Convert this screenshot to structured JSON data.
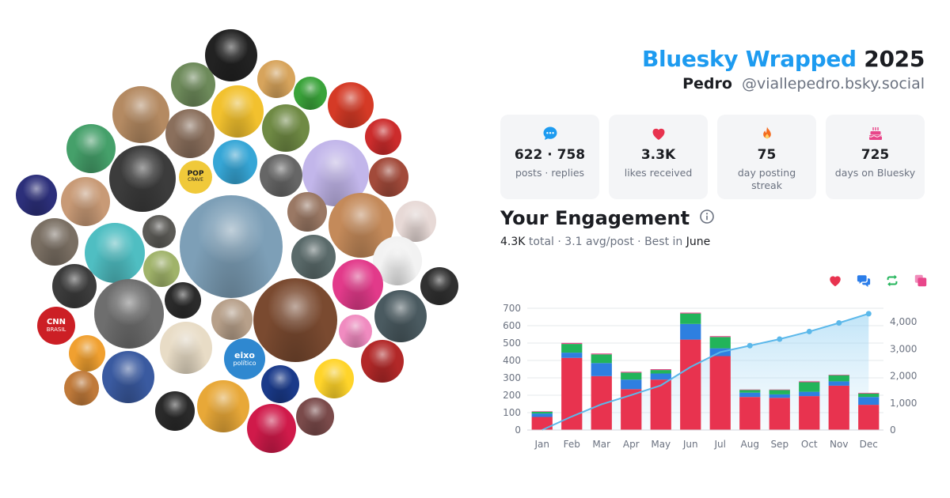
{
  "header": {
    "brand": "Bluesky Wrapped",
    "year": "2025",
    "name": "Pedro",
    "handle": "@viallepedro.bsky.social"
  },
  "stats": [
    {
      "icon": "chat-bubble-icon",
      "color": "#1d9bf0",
      "value": "622 · 758",
      "label": "posts · replies"
    },
    {
      "icon": "heart-icon",
      "color": "#e8334f",
      "value": "3.3K",
      "label": "likes received"
    },
    {
      "icon": "flame-icon",
      "color": "#f46b1f",
      "value": "75",
      "label": "day posting streak"
    },
    {
      "icon": "cake-icon",
      "color": "#e8468a",
      "value": "725",
      "label": "days on Bluesky"
    }
  ],
  "engagement": {
    "title": "Your Engagement",
    "total": "4.3K",
    "total_word": "total",
    "avg": "3.1 avg/post",
    "best_prefix": "Best in",
    "best_month": "June"
  },
  "legend": [
    {
      "icon": "heart-icon",
      "color": "#e8334f"
    },
    {
      "icon": "reply-icon",
      "color": "#2b7de9"
    },
    {
      "icon": "repost-icon",
      "color": "#22b45a"
    },
    {
      "icon": "quote-icon",
      "color": "#e8468a"
    }
  ],
  "colors": {
    "likes": "#e8334f",
    "replies": "#2e7fe0",
    "reposts": "#22b45a",
    "quotes": "#e8468a",
    "cumulative": "#5bb8ea"
  },
  "chart_data": {
    "type": "bar",
    "stacked": true,
    "categories": [
      "Jan",
      "Feb",
      "Mar",
      "Apr",
      "May",
      "Jun",
      "Jul",
      "Aug",
      "Sep",
      "Oct",
      "Nov",
      "Dec"
    ],
    "series": [
      {
        "values": [
          75,
          415,
          310,
          235,
          290,
          520,
          425,
          190,
          185,
          195,
          255,
          145
        ]
      },
      {
        "values": [
          20,
          30,
          75,
          55,
          35,
          90,
          45,
          25,
          20,
          25,
          25,
          45
        ]
      },
      {
        "values": [
          10,
          50,
          50,
          40,
          20,
          60,
          65,
          15,
          25,
          55,
          35,
          20
        ]
      },
      {
        "values": [
          3,
          6,
          5,
          5,
          5,
          5,
          5,
          3,
          3,
          5,
          3,
          4
        ]
      }
    ],
    "cumulative": {
      "values": [
        0,
        500,
        950,
        1290,
        1650,
        2330,
        2880,
        3120,
        3360,
        3640,
        3960,
        4300
      ]
    },
    "ylim": [
      0,
      700
    ],
    "yticks": [
      0,
      100,
      200,
      300,
      400,
      500,
      600,
      700
    ],
    "y2lim": [
      0,
      4500
    ],
    "y2ticks": [
      0,
      1000,
      2000,
      3000,
      4000
    ],
    "y2tick_labels": [
      "0",
      "1,000",
      "2,000",
      "3,000",
      "4,000"
    ],
    "grid": true
  },
  "bubbles": {
    "labels": [
      {
        "text": "POP",
        "sub": "CRAVE",
        "color": "#f0c93a",
        "text_color": "#1b1d22"
      },
      {
        "text": "CNN",
        "sub": "BRASIL",
        "color": "#cc1f25",
        "text_color": "#ffffff"
      },
      {
        "text": "eixo",
        "sub": "político",
        "color": "#2f88d0",
        "text_color": "#ffffff"
      }
    ]
  }
}
